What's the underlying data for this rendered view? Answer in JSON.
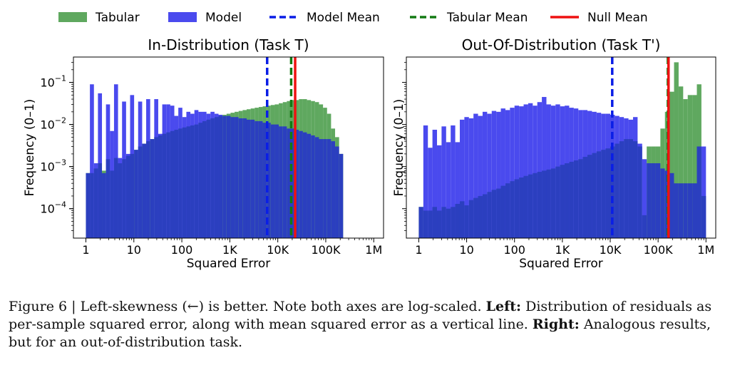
{
  "legend": [
    {
      "label": "Tabular",
      "kind": "patch",
      "color": "#5fa85f"
    },
    {
      "label": "Model",
      "kind": "patch",
      "color": "#4a4aee"
    },
    {
      "label": "Model Mean",
      "kind": "dashed",
      "color": "#0a1ee6"
    },
    {
      "label": "Tabular Mean",
      "kind": "dashed",
      "color": "#137a13"
    },
    {
      "label": "Null Mean",
      "kind": "solid",
      "color": "#ee1111"
    }
  ],
  "colors": {
    "tabular": "#5fa85f",
    "model": "#4a4aee",
    "overlap": "#2b3fbf",
    "model_mean": "#0a1ee6",
    "tabular_mean": "#137a13",
    "null_mean": "#ee1111"
  },
  "caption": {
    "prefix": "Figure 6 | Left-skewness (←) is better. Note both axes are log-scaled. ",
    "left_label": "Left:",
    "left_text": " Distribution of residuals as per-sample squared error, along with mean squared error as a vertical line. ",
    "right_label": "Right:",
    "right_text": " Analogous results, but for an out-of-distribution task."
  },
  "chart_data": [
    {
      "type": "bar",
      "title": "In-Distribution (Task T)",
      "xlabel": "Squared Error",
      "ylabel": "Frequency (0–1)",
      "x_scale": "log",
      "y_scale": "log",
      "xlim": [
        0.55,
        1600000
      ],
      "ylim": [
        2e-05,
        0.4
      ],
      "xticks": [
        {
          "value": 1,
          "label": "1"
        },
        {
          "value": 10,
          "label": "10"
        },
        {
          "value": 100,
          "label": "100"
        },
        {
          "value": 1000,
          "label": "1K"
        },
        {
          "value": 10000,
          "label": "10K"
        },
        {
          "value": 100000,
          "label": "100K"
        },
        {
          "value": 1000000,
          "label": "1M"
        }
      ],
      "yticks": [
        {
          "value": 0.1,
          "exp": "−1"
        },
        {
          "value": 0.01,
          "exp": "−2"
        },
        {
          "value": 0.001,
          "exp": "−3"
        },
        {
          "value": 0.0001,
          "exp": "−4"
        }
      ],
      "bin_range": [
        1,
        230000
      ],
      "series": [
        {
          "name": "Tabular",
          "values": [
            0.0007,
            0.0007,
            0.0009,
            0.0012,
            0.0008,
            0.0015,
            0.0008,
            0.0016,
            0.0012,
            0.0015,
            0.0018,
            0.002,
            0.0025,
            0.003,
            0.0035,
            0.004,
            0.0045,
            0.005,
            0.0055,
            0.006,
            0.0065,
            0.007,
            0.0075,
            0.008,
            0.0085,
            0.009,
            0.0095,
            0.01,
            0.011,
            0.012,
            0.013,
            0.014,
            0.015,
            0.016,
            0.017,
            0.018,
            0.019,
            0.02,
            0.021,
            0.022,
            0.023,
            0.024,
            0.025,
            0.026,
            0.027,
            0.028,
            0.029,
            0.03,
            0.032,
            0.034,
            0.036,
            0.038,
            0.038,
            0.04,
            0.04,
            0.038,
            0.036,
            0.034,
            0.03,
            0.025,
            0.018,
            0.008,
            0.005,
            0.002
          ]
        },
        {
          "name": "Model",
          "values": [
            0.0007,
            0.09,
            0.0012,
            0.055,
            0.0007,
            0.03,
            0.007,
            0.09,
            0.0016,
            0.035,
            0.002,
            0.05,
            0.0025,
            0.035,
            0.0035,
            0.04,
            0.0045,
            0.04,
            0.006,
            0.03,
            0.03,
            0.028,
            0.016,
            0.025,
            0.015,
            0.02,
            0.018,
            0.022,
            0.02,
            0.02,
            0.018,
            0.02,
            0.018,
            0.017,
            0.016,
            0.016,
            0.015,
            0.015,
            0.014,
            0.014,
            0.013,
            0.013,
            0.012,
            0.012,
            0.011,
            0.011,
            0.01,
            0.01,
            0.009,
            0.009,
            0.008,
            0.008,
            0.0075,
            0.007,
            0.0065,
            0.006,
            0.0055,
            0.005,
            0.0045,
            0.0045,
            0.0045,
            0.004,
            0.003,
            0.002
          ]
        }
      ],
      "vlines": [
        {
          "name": "Model Mean",
          "x": 6000
        },
        {
          "name": "Tabular Mean",
          "x": 19000
        },
        {
          "name": "Null Mean",
          "x": 23000
        }
      ]
    },
    {
      "type": "bar",
      "title": "Out-Of-Distribution (Task T')",
      "xlabel": "Squared Error",
      "ylabel": "Frequency (0–1)",
      "x_scale": "log",
      "y_scale": "log",
      "xlim": [
        0.55,
        1600000
      ],
      "ylim": [
        2e-05,
        0.4
      ],
      "xticks": [
        {
          "value": 1,
          "label": "1"
        },
        {
          "value": 10,
          "label": "10"
        },
        {
          "value": 100,
          "label": "100"
        },
        {
          "value": 1000,
          "label": "1K"
        },
        {
          "value": 10000,
          "label": "10K"
        },
        {
          "value": 100000,
          "label": "100K"
        },
        {
          "value": 1000000,
          "label": "1M"
        }
      ],
      "yticks": [],
      "bin_range": [
        1,
        1000000
      ],
      "series": [
        {
          "name": "Tabular",
          "values": [
            0.00011,
            9e-05,
            9e-05,
            0.00011,
            9e-05,
            0.00011,
            0.0001,
            0.00011,
            0.00013,
            0.00015,
            0.00012,
            0.00016,
            0.00018,
            0.0002,
            0.00022,
            0.00025,
            0.00028,
            0.0003,
            0.00035,
            0.0004,
            0.00045,
            0.0005,
            0.00055,
            0.0006,
            0.00065,
            0.0007,
            0.00075,
            0.0008,
            0.00085,
            0.0009,
            0.001,
            0.0011,
            0.0012,
            0.0013,
            0.0014,
            0.0015,
            0.0017,
            0.0019,
            0.0021,
            0.0023,
            0.0025,
            0.0027,
            0.003,
            0.0035,
            0.004,
            0.0045,
            0.0045,
            0.004,
            0.003,
            7e-05,
            0.003,
            0.003,
            0.003,
            0.008,
            0.02,
            0.06,
            0.3,
            0.08,
            0.04,
            0.05,
            0.05,
            0.09,
            0.0002
          ]
        },
        {
          "name": "Model",
          "values": [
            0.00011,
            0.0095,
            0.0028,
            0.0075,
            0.0032,
            0.009,
            0.0038,
            0.0095,
            0.0038,
            0.013,
            0.015,
            0.014,
            0.018,
            0.016,
            0.02,
            0.018,
            0.021,
            0.02,
            0.024,
            0.022,
            0.025,
            0.028,
            0.027,
            0.03,
            0.032,
            0.028,
            0.034,
            0.045,
            0.03,
            0.028,
            0.03,
            0.027,
            0.028,
            0.025,
            0.024,
            0.022,
            0.022,
            0.021,
            0.02,
            0.019,
            0.018,
            0.018,
            0.017,
            0.016,
            0.015,
            0.014,
            0.013,
            0.015,
            0.0035,
            0.0015,
            0.0012,
            0.0012,
            0.0012,
            0.0009,
            0.0008,
            0.0007,
            0.0004,
            0.0004,
            0.0004,
            0.0004,
            0.0004,
            0.003,
            0.003
          ]
        }
      ],
      "vlines": [
        {
          "name": "Model Mean",
          "x": 11000
        },
        {
          "name": "Tabular Mean",
          "x": 160000
        },
        {
          "name": "Null Mean",
          "x": 165000
        }
      ]
    }
  ]
}
